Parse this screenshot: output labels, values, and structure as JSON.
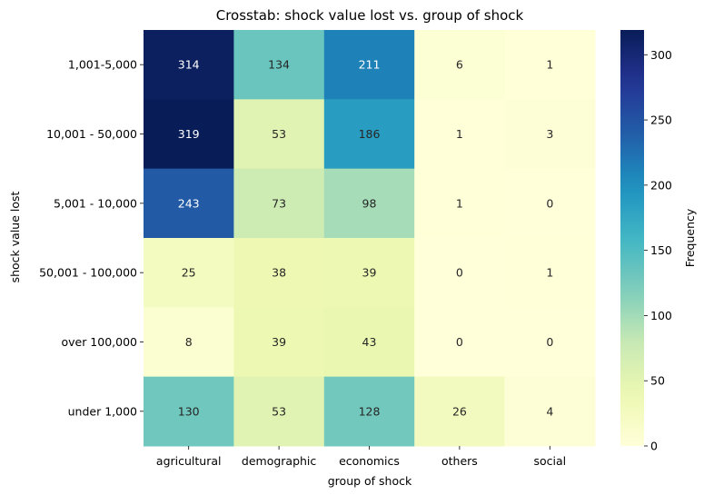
{
  "chart_data": {
    "type": "heatmap",
    "title": "Crosstab: shock value lost vs. group of shock",
    "xlabel": "group of shock",
    "ylabel": "shock value lost",
    "x_categories": [
      "agricultural",
      "demographic",
      "economics",
      "others",
      "social"
    ],
    "y_categories": [
      "1,001-5,000",
      "10,001 - 50,000",
      "5,001 - 10,000",
      "50,001 - 100,000",
      "over 100,000",
      "under 1,000"
    ],
    "values": [
      [
        314,
        134,
        211,
        6,
        1
      ],
      [
        319,
        53,
        186,
        1,
        3
      ],
      [
        243,
        73,
        98,
        1,
        0
      ],
      [
        25,
        38,
        39,
        0,
        1
      ],
      [
        8,
        39,
        43,
        0,
        0
      ],
      [
        130,
        53,
        128,
        26,
        4
      ]
    ],
    "colorbar": {
      "label": "Frequency",
      "min": 0,
      "max": 319,
      "ticks": [
        0,
        50,
        100,
        150,
        200,
        250,
        300
      ],
      "colormap": "YlGnBu"
    }
  }
}
